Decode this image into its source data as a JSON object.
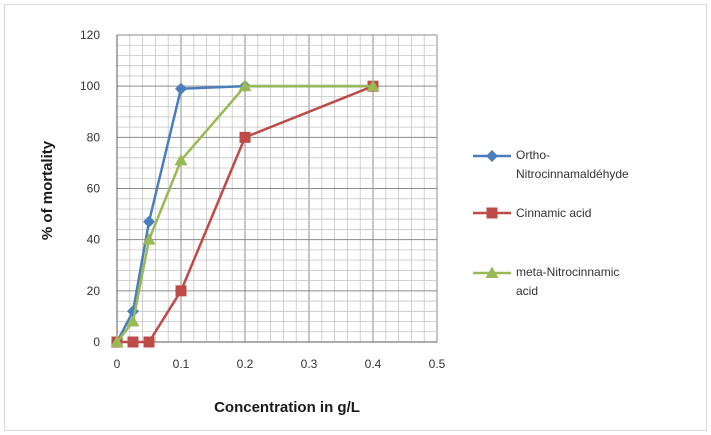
{
  "chart_data": {
    "type": "line",
    "title": "",
    "xlabel": "Concentration in g/L",
    "ylabel": "% of mortality",
    "xlim": [
      0,
      0.5
    ],
    "ylim": [
      0,
      120
    ],
    "x_ticks": [
      "0",
      "0.1",
      "0.2",
      "0.3",
      "0.4",
      "0.5"
    ],
    "y_ticks": [
      "0",
      "20",
      "40",
      "60",
      "80",
      "100",
      "120"
    ],
    "grid": true,
    "legend_position": "right",
    "series": [
      {
        "name": "Ortho-Nitrocinnamaldéhyde",
        "legend_lines": [
          "Ortho-",
          "Nitrocinnamaldéhyde"
        ],
        "color": "#4a7ebb",
        "marker": "diamond",
        "x": [
          0,
          0.025,
          0.05,
          0.1,
          0.2,
          0.4
        ],
        "y": [
          0,
          12,
          47,
          99,
          100,
          100
        ]
      },
      {
        "name": "Cinnamic acid",
        "legend_lines": [
          "Cinnamic acid"
        ],
        "color": "#be4b48",
        "marker": "square",
        "x": [
          0,
          0.025,
          0.05,
          0.1,
          0.2,
          0.4
        ],
        "y": [
          0,
          0,
          0,
          20,
          80,
          100
        ]
      },
      {
        "name": "meta-Nitrocinnamic acid",
        "legend_lines": [
          "meta-Nitrocinnamic",
          "acid"
        ],
        "color": "#98b954",
        "marker": "triangle",
        "x": [
          0,
          0.025,
          0.05,
          0.1,
          0.2,
          0.4
        ],
        "y": [
          0,
          8,
          40,
          71,
          100,
          100
        ]
      }
    ]
  }
}
